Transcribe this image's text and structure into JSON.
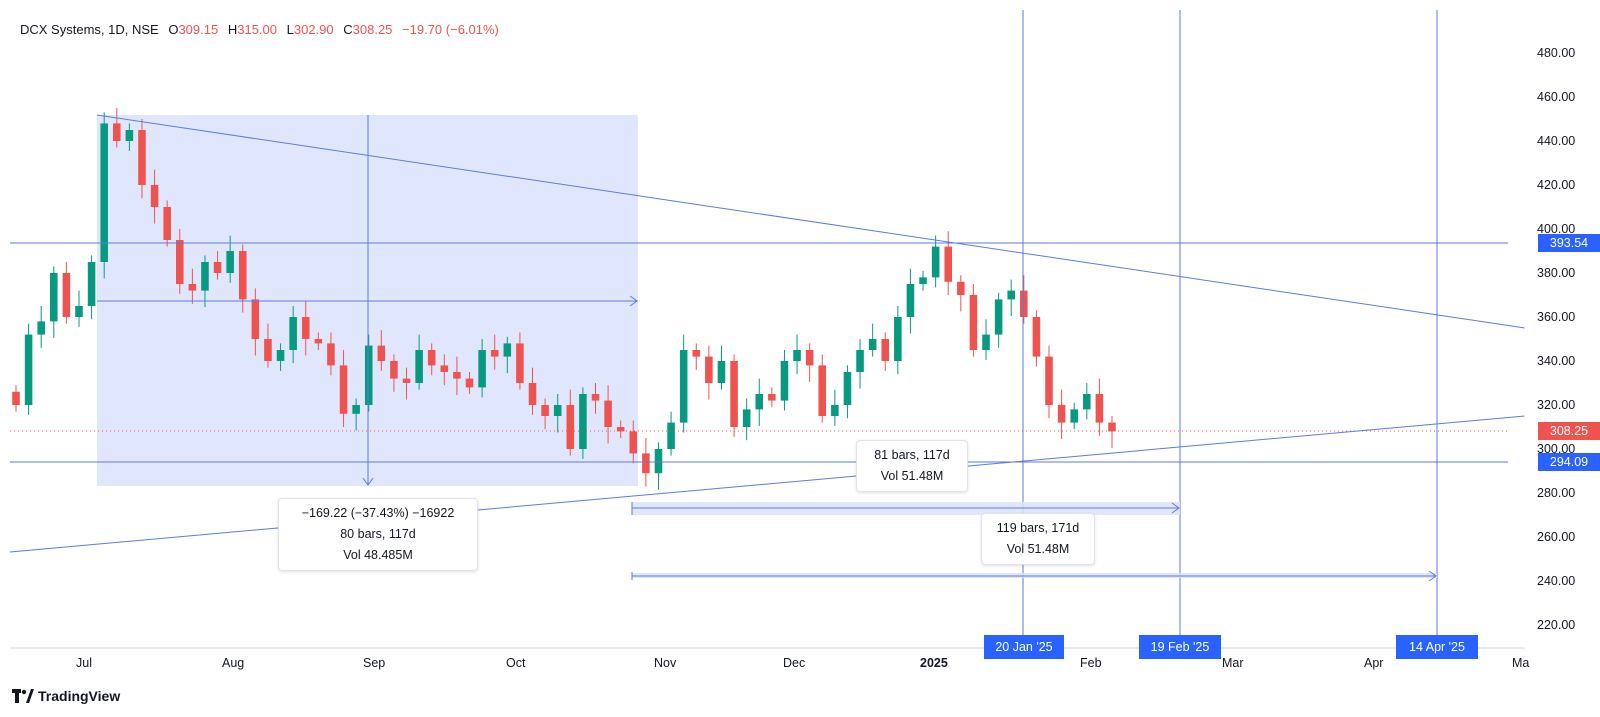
{
  "legend": {
    "symbol": "DCX Systems, 1D, NSE",
    "open_label": "O",
    "open": "309.15",
    "high_label": "H",
    "high": "315.00",
    "low_label": "L",
    "low": "302.90",
    "close_label": "C",
    "close": "308.25",
    "change": "−19.70 (−6.01%)"
  },
  "brand": "TradingView",
  "price_axis_ticks": [
    "480.00",
    "460.00",
    "440.00",
    "420.00",
    "400.00",
    "380.00",
    "360.00",
    "340.00",
    "320.00",
    "300.00",
    "280.00",
    "260.00",
    "240.00",
    "220.00"
  ],
  "price_tags": {
    "upper_level": "393.54",
    "last_price": "308.25",
    "lower_level": "294.09"
  },
  "time_axis": {
    "labels": [
      "Jul",
      "Aug",
      "Sep",
      "Oct",
      "Nov",
      "Dec",
      "2025",
      "Feb",
      "Mar",
      "Apr",
      "Ma"
    ],
    "date_tags": [
      "20 Jan '25",
      "19 Feb '25",
      "14 Apr '25"
    ]
  },
  "measure_boxes": {
    "box1_line1": "−169.22 (−37.43%) −16922",
    "box1_line2": "80 bars, 117d",
    "box1_line3": "Vol 48.485M",
    "box2_line1": "81 bars, 117d",
    "box2_line2": "Vol 51.48M",
    "box3_line1": "119 bars, 171d",
    "box3_line2": "Vol 51.48M"
  },
  "colors": {
    "up": "#089981",
    "down": "#ef5350",
    "drawing": "#5b7be0",
    "highlight_fill": "#dbe3fb",
    "tag_blue": "#2962ff",
    "tag_red": "#ef5350"
  },
  "chart_data": {
    "type": "candlestick",
    "title": "DCX Systems, 1D, NSE",
    "x_range": [
      "2024-06",
      "2025-05"
    ],
    "ylim": [
      210,
      490
    ],
    "horizontal_levels": [
      393.54,
      294.09
    ],
    "last_price": 308.25,
    "closes": [
      320,
      352,
      358,
      380,
      360,
      365,
      385,
      448,
      440,
      445,
      420,
      410,
      395,
      375,
      372,
      385,
      380,
      390,
      368,
      350,
      340,
      345,
      360,
      350,
      348,
      338,
      316,
      320,
      347,
      340,
      332,
      330,
      345,
      338,
      335,
      332,
      328,
      345,
      342,
      348,
      330,
      320,
      315,
      320,
      300,
      325,
      322,
      310,
      308,
      298,
      289,
      300,
      312,
      345,
      342,
      330,
      340,
      310,
      318,
      325,
      322,
      340,
      345,
      338,
      315,
      320,
      335,
      345,
      350,
      340,
      360,
      375,
      378,
      392,
      376,
      370,
      345,
      352,
      368,
      372,
      360,
      342,
      320,
      312,
      318,
      325,
      312,
      308
    ]
  }
}
